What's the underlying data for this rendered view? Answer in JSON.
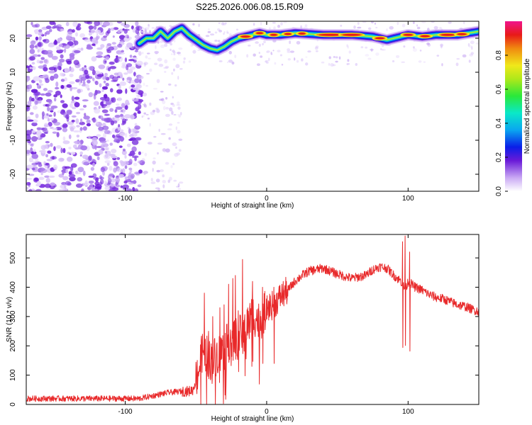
{
  "title": "S225.2026.006.08.15.R09",
  "chart_data": [
    {
      "type": "heatmap",
      "xlabel": "Height of straight line (km)",
      "ylabel": "Frequency (Hz)",
      "xlim": [
        -170,
        150
      ],
      "ylim": [
        -25,
        25
      ],
      "x_ticks": [
        -100,
        0,
        100
      ],
      "y_ticks": [
        -20,
        -10,
        0,
        10,
        20
      ],
      "colorbar": {
        "label": "Normalized spectral amplitude",
        "range": [
          0,
          1
        ],
        "ticks": [
          "0.0",
          "0.2",
          "0.4",
          "0.6",
          "0.8"
        ]
      },
      "ridge_frequency_hz": [
        {
          "x": -90,
          "y": 18.5
        },
        {
          "x": -85,
          "y": 20
        },
        {
          "x": -80,
          "y": 20
        },
        {
          "x": -75,
          "y": 22
        },
        {
          "x": -70,
          "y": 20
        },
        {
          "x": -65,
          "y": 22
        },
        {
          "x": -60,
          "y": 23
        },
        {
          "x": -55,
          "y": 21
        },
        {
          "x": -50,
          "y": 19.5
        },
        {
          "x": -45,
          "y": 18
        },
        {
          "x": -40,
          "y": 17
        },
        {
          "x": -35,
          "y": 16.5
        },
        {
          "x": -30,
          "y": 17.5
        },
        {
          "x": -25,
          "y": 19
        },
        {
          "x": -20,
          "y": 20
        },
        {
          "x": -15,
          "y": 20.5
        },
        {
          "x": -10,
          "y": 21
        },
        {
          "x": -5,
          "y": 21.5
        },
        {
          "x": 0,
          "y": 21
        },
        {
          "x": 10,
          "y": 21
        },
        {
          "x": 20,
          "y": 21.5
        },
        {
          "x": 40,
          "y": 21
        },
        {
          "x": 60,
          "y": 21
        },
        {
          "x": 75,
          "y": 20.5
        },
        {
          "x": 85,
          "y": 19.5
        },
        {
          "x": 90,
          "y": 20
        },
        {
          "x": 100,
          "y": 21
        },
        {
          "x": 110,
          "y": 20.5
        },
        {
          "x": 120,
          "y": 21
        },
        {
          "x": 135,
          "y": 21
        },
        {
          "x": 150,
          "y": 22
        }
      ]
    },
    {
      "type": "line",
      "xlabel": "Height of straight line (km)",
      "ylabel": "SNR (10 * v/v)",
      "xlim": [
        -170,
        150
      ],
      "ylim": [
        0,
        580
      ],
      "x_ticks": [
        -100,
        0,
        100
      ],
      "y_ticks": [
        0,
        100,
        200,
        300,
        400,
        500
      ],
      "series": [
        {
          "color": "#e8292a",
          "points": [
            {
              "x": -170,
              "y": 20
            },
            {
              "x": -120,
              "y": 20
            },
            {
              "x": -90,
              "y": 20
            },
            {
              "x": -80,
              "y": 30
            },
            {
              "x": -70,
              "y": 40
            },
            {
              "x": -60,
              "y": 45
            },
            {
              "x": -55,
              "y": 45
            },
            {
              "x": -52,
              "y": 50
            },
            {
              "x": -48,
              "y": 120
            },
            {
              "x": -45,
              "y": 190
            },
            {
              "x": -40,
              "y": 150
            },
            {
              "x": -35,
              "y": 170
            },
            {
              "x": -30,
              "y": 190
            },
            {
              "x": -25,
              "y": 230
            },
            {
              "x": -20,
              "y": 230
            },
            {
              "x": -15,
              "y": 260
            },
            {
              "x": -10,
              "y": 310
            },
            {
              "x": -5,
              "y": 280
            },
            {
              "x": 0,
              "y": 330
            },
            {
              "x": 5,
              "y": 340
            },
            {
              "x": 10,
              "y": 370
            },
            {
              "x": 15,
              "y": 390
            },
            {
              "x": 20,
              "y": 420
            },
            {
              "x": 25,
              "y": 440
            },
            {
              "x": 30,
              "y": 455
            },
            {
              "x": 40,
              "y": 465
            },
            {
              "x": 50,
              "y": 445
            },
            {
              "x": 60,
              "y": 430
            },
            {
              "x": 70,
              "y": 440
            },
            {
              "x": 75,
              "y": 460
            },
            {
              "x": 80,
              "y": 470
            },
            {
              "x": 85,
              "y": 465
            },
            {
              "x": 90,
              "y": 440
            },
            {
              "x": 95,
              "y": 420
            },
            {
              "x": 98,
              "y": 390
            },
            {
              "x": 100,
              "y": 420
            },
            {
              "x": 105,
              "y": 400
            },
            {
              "x": 110,
              "y": 390
            },
            {
              "x": 115,
              "y": 375
            },
            {
              "x": 120,
              "y": 365
            },
            {
              "x": 125,
              "y": 360
            },
            {
              "x": 130,
              "y": 350
            },
            {
              "x": 135,
              "y": 340
            },
            {
              "x": 140,
              "y": 335
            },
            {
              "x": 145,
              "y": 325
            },
            {
              "x": 150,
              "y": 318
            }
          ],
          "spikes": [
            {
              "x": -44,
              "y": 380
            },
            {
              "x": -41,
              "y": 250
            },
            {
              "x": -38,
              "y": 300
            },
            {
              "x": -33,
              "y": 330
            },
            {
              "x": -30,
              "y": 340
            },
            {
              "x": -27,
              "y": 410
            },
            {
              "x": -24,
              "y": 430
            },
            {
              "x": -22,
              "y": 440
            },
            {
              "x": -20,
              "y": 320
            },
            {
              "x": -17,
              "y": 495
            },
            {
              "x": -10,
              "y": 420
            },
            {
              "x": -3,
              "y": 400
            },
            {
              "x": 5,
              "y": 400
            },
            {
              "x": 96,
              "y": 555
            },
            {
              "x": 98,
              "y": 575
            },
            {
              "x": 101,
              "y": 520
            }
          ]
        }
      ]
    }
  ]
}
